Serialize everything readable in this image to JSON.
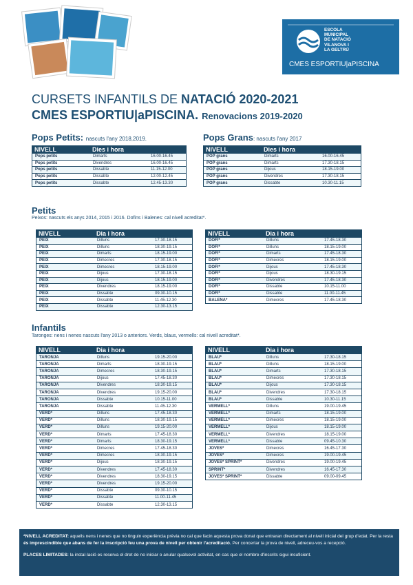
{
  "header": {
    "logo_text": [
      "ESCOLA",
      "MUNICIPAL",
      "DE NATACIÓ",
      "VILANOVA I",
      "LA GELTRÚ"
    ],
    "brand": "CMES ESPORTIU|aPISCINA"
  },
  "title": {
    "line1": [
      "CURSETS INFANTILS DE ",
      "NATACIÓ 2020-2021"
    ],
    "line2": [
      "CMES ESPORTIU|aPISCINA.",
      "Renovacions 2019-2020"
    ]
  },
  "pops": [
    {
      "heading": "Pops Petits:",
      "note": "nascuts l'any 2018,2019.",
      "table": {
        "columns": [
          "NIVELL",
          "Dies i hora"
        ],
        "rows": [
          [
            "Pops petits",
            "Dimarts",
            "16.00-16.45"
          ],
          [
            "Pops petits",
            "Divendres",
            "16.00-16.45"
          ],
          [
            "Pops petits",
            "Dissabte",
            "11.15-12.00"
          ],
          [
            "Pops petits",
            "Dissabte",
            "12.00-12.45"
          ],
          [
            "Pops petits",
            "Dissabte",
            "12.45-13.30"
          ]
        ]
      }
    },
    {
      "heading": "Pops Grans",
      "note": ": nascuts l'any 2017",
      "table": {
        "columns": [
          "NIVELL",
          "Dies i hora"
        ],
        "rows": [
          [
            "POP grans",
            "Dimarts",
            "16.00-16.45"
          ],
          [
            "POP grans",
            "Dimarts",
            "17.30-18.15"
          ],
          [
            "POP grans",
            "Dijous",
            "18.15-19.00"
          ],
          [
            "POP grans",
            "Divendres",
            "17.30-18.15"
          ],
          [
            "POP grans",
            "Dissabte",
            "10.30-11.15"
          ]
        ]
      }
    }
  ],
  "petits": {
    "heading": "Petits",
    "desc": "Peixos: nascuts els anys 2014, 2015 i 2016.  Dofins i Balenes: cal nivell acreditat*.",
    "tables": [
      {
        "columns": [
          "NIVELL",
          "Dia i hora"
        ],
        "rows": [
          [
            "PEIX",
            "Dilluns",
            "17.30-18.15"
          ],
          [
            "PEIX",
            "Dilluns",
            "18.30-19.15"
          ],
          [
            "PEIX",
            "Dimarts",
            "18.15-19.00"
          ],
          [
            "PEIX",
            "Dimecres",
            "17.30-18.15"
          ],
          [
            "PEIX",
            "Dimecres",
            "18.15-19.00"
          ],
          [
            "PEIX",
            "Dijous",
            "17.30-18.15"
          ],
          [
            "PEIX",
            "Dijous",
            "18.15-19.00"
          ],
          [
            "PEIX",
            "Divendres",
            "18.15-19.00"
          ],
          [
            "PEIX",
            "Dissabte",
            "09.30-10.15"
          ],
          [
            "PEIX",
            "Dissabte",
            "11.45-12.30"
          ],
          [
            "PEIX",
            "Dissabte",
            "12.30-13.15"
          ]
        ]
      },
      {
        "columns": [
          "NIVELL",
          "Dia i hora"
        ],
        "rows": [
          [
            "DOFI*",
            "Dilluns",
            "17.45-18.30"
          ],
          [
            "DOFI*",
            "Dilluns",
            "18.15-19.00"
          ],
          [
            "DOFI*",
            "Dimarts",
            "17.45-18.30"
          ],
          [
            "DOFI*",
            "Dimecres",
            "18.15-19.00"
          ],
          [
            "DOFI*",
            "Dijous",
            "17.45-18.30"
          ],
          [
            "DOFI*",
            "Dijous",
            "18.30-19.15"
          ],
          [
            "DOFI*",
            "Divendres",
            "17.45-18.30"
          ],
          [
            "DOFI*",
            "Dissabte",
            "10.15-11.00"
          ],
          [
            "DOFI*",
            "Dissabte",
            "11.00-11.45"
          ],
          [
            "BALENA*",
            "Dimecres",
            "17.45-18.30"
          ]
        ]
      }
    ]
  },
  "infantils": {
    "heading": "Infantils",
    "desc": "Taronges: nens i nenes nascuts l'any 2013 o anteriors. Verds, blaus, vermells: cal nivell acreditat*.",
    "tables": [
      {
        "columns": [
          "NIVELL",
          "Dia i hora"
        ],
        "rows": [
          [
            "TARONJA",
            "Dilluns",
            "19.15-20.00"
          ],
          [
            "TARONJA",
            "Dimarts",
            "18.30-19.15"
          ],
          [
            "TARONJA",
            "Dimecres",
            "18.30-19.15"
          ],
          [
            "TARONJA",
            "Dijous",
            "17.45-18.30"
          ],
          [
            "TARONJA",
            "Divendres",
            "18.30-19.15"
          ],
          [
            "TARONJA",
            "Divendres",
            "19.15-20.00"
          ],
          [
            "TARONJA",
            "Dissabte",
            "10.15-11.00"
          ],
          [
            "TARONJA",
            "Dissabte",
            "11.45-12.30"
          ],
          [
            "VERD*",
            "Dilluns",
            "17.45-18.30"
          ],
          [
            "VERD*",
            "Dilluns",
            "18.30-19.15"
          ],
          [
            "VERD*",
            "Dilluns",
            "19.15-20.00"
          ],
          [
            "VERD*",
            "Dimarts",
            "17.45-18.30"
          ],
          [
            "VERD*",
            "Dimarts",
            "18.30-19.15"
          ],
          [
            "VERD*",
            "Dimecres",
            "17.45-18.30"
          ],
          [
            "VERD*",
            "Dimecres",
            "18.30-19.15"
          ],
          [
            "VERD*",
            "Dijous",
            "18.30-19.15"
          ],
          [
            "VERD*",
            "Divendres",
            "17.45-18.30"
          ],
          [
            "VERD*",
            "Divendres",
            "18.30-19.15"
          ],
          [
            "VERD*",
            "Divendres",
            "19.15-20.00"
          ],
          [
            "VERD*",
            "Dissabte",
            "09.30-10.15"
          ],
          [
            "VERD*",
            "Dissabte",
            "11.00-11.45"
          ],
          [
            "VERD*",
            "Dissabte",
            "12.30-13.15"
          ]
        ]
      },
      {
        "columns": [
          "NIVELL",
          "Dia i hora"
        ],
        "rows": [
          [
            "BLAU*",
            "Dilluns",
            "17.30-18.15"
          ],
          [
            "BLAU*",
            "Dilluns",
            "18.15-19.00"
          ],
          [
            "BLAU*",
            "Dimarts",
            "17.30-18.15"
          ],
          [
            "BLAU*",
            "Dimecres",
            "17.30-18.15"
          ],
          [
            "BLAU*",
            "Dijous",
            "17.30-18.15"
          ],
          [
            "BLAU*",
            "Divendres",
            "17.30-18.15"
          ],
          [
            "BLAU*",
            "Dissabte",
            "10.30-11.15"
          ],
          [
            "VERMELL*",
            "Dilluns",
            "19.00-19.45"
          ],
          [
            "VERMELL*",
            "Dimarts",
            "18.15-19.00"
          ],
          [
            "VERMELL*",
            "Dimecres",
            "18.15-19.00"
          ],
          [
            "VERMELL*",
            "Dijous",
            "18.15-19.00"
          ],
          [
            "VERMELL*",
            "Divendres",
            "18.15-19.00"
          ],
          [
            "VERMELL*",
            "Dissabte",
            "09.45-10.30"
          ],
          [
            "JOVES*",
            "Dimecres",
            "16.45-17.30"
          ],
          [
            "JOVES*",
            "Dimecres",
            "19.00-19.45"
          ],
          [
            "JOVES* SPRINT*",
            "Divendres",
            "19.00-19.45"
          ],
          [
            "SPRINT*",
            "Divendres",
            "16.45-17.30"
          ],
          [
            "JOVES* SPRINT*",
            "Dissabte",
            "09.00-09.45"
          ]
        ]
      }
    ]
  },
  "footer": {
    "acreditat": [
      "*NIVELL ACREDITAT:",
      " aquells nens i nenes que no tinguin experiència prèvia no cal que facin aquesta prova donat que entraran directament al nivell inicial del grup d'edat. Per la resta ",
      "és imprescindible que abans de fer la inscripció feu una prova de nivell per obtenir l'acreditació.",
      " Per concertar la prova de nivell, adreceu-vos a recepció."
    ],
    "places": [
      "PLACES LIMITADES:",
      " la instal·lació es reserva el dret de no iniciar o anular qualsevol activitat, en cas que el nombre d'inscrits sigui insuficient."
    ]
  }
}
